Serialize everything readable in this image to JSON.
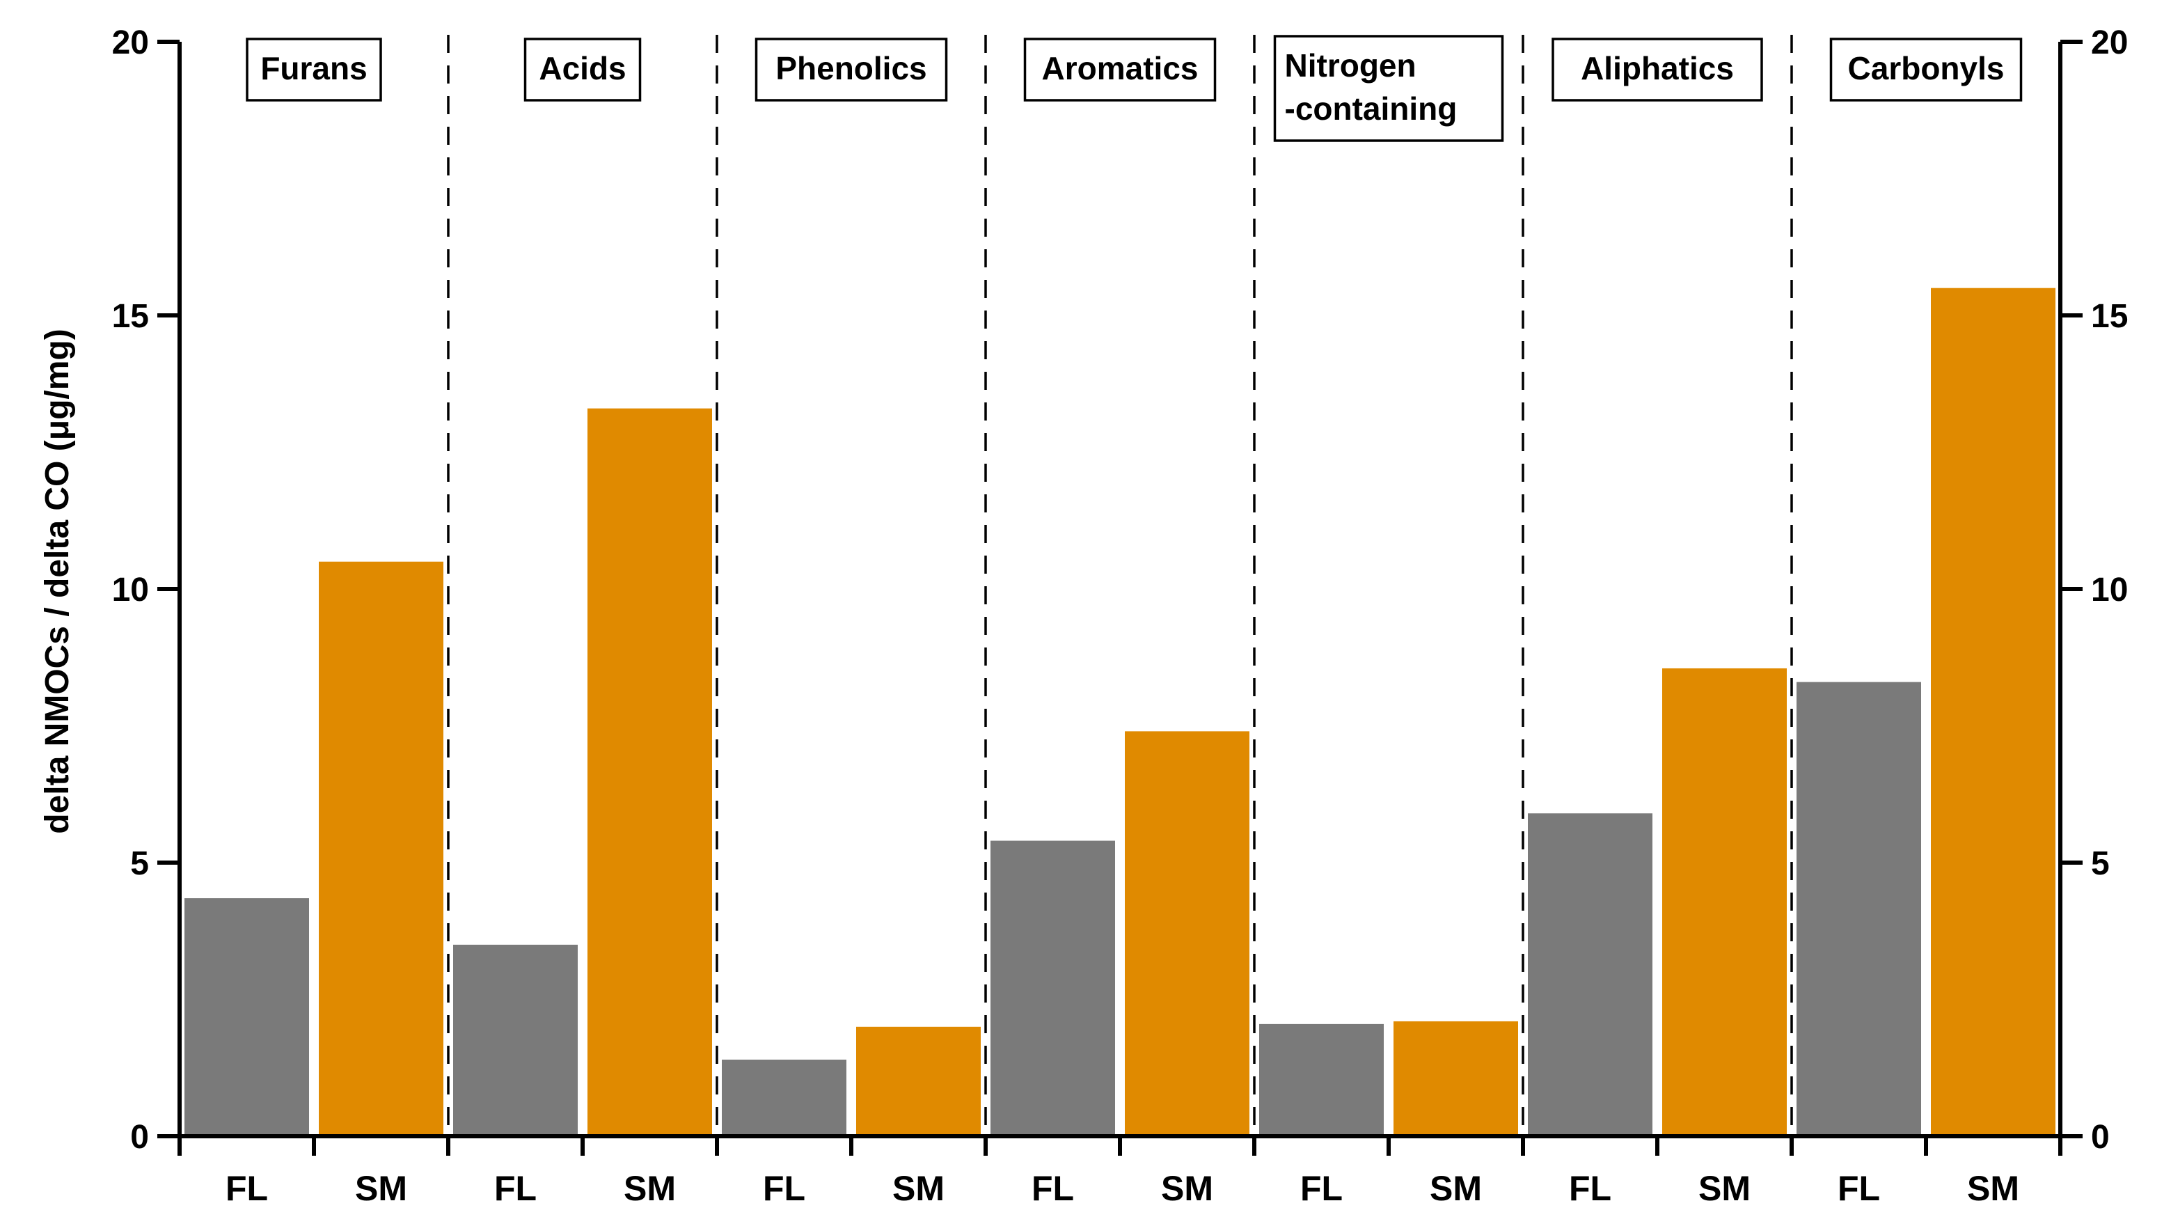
{
  "chart_data": {
    "type": "bar",
    "ylabel": "delta NMOCs / delta CO (μg/mg)",
    "ylim": [
      0,
      20
    ],
    "yticks": [
      0,
      5,
      10,
      15,
      20
    ],
    "right_axis": true,
    "grid": false,
    "colors": {
      "FL": "#7a7a7a",
      "SM": "#e08a00"
    },
    "groups": [
      {
        "name": [
          "Furans"
        ],
        "values": {
          "FL": 4.35,
          "SM": 10.5
        }
      },
      {
        "name": [
          "Acids"
        ],
        "values": {
          "FL": 3.5,
          "SM": 13.3
        }
      },
      {
        "name": [
          "Phenolics"
        ],
        "values": {
          "FL": 1.4,
          "SM": 2.0
        }
      },
      {
        "name": [
          "Aromatics"
        ],
        "values": {
          "FL": 5.4,
          "SM": 7.4
        }
      },
      {
        "name": [
          "Nitrogen",
          "-containing"
        ],
        "values": {
          "FL": 2.05,
          "SM": 2.1
        }
      },
      {
        "name": [
          "Aliphatics"
        ],
        "values": {
          "FL": 5.9,
          "SM": 8.55
        }
      },
      {
        "name": [
          "Carbonyls"
        ],
        "values": {
          "FL": 8.3,
          "SM": 15.5
        }
      }
    ],
    "categories": [
      "FL",
      "SM"
    ]
  }
}
